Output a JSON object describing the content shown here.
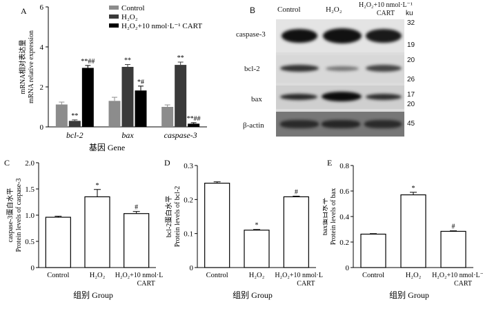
{
  "panel_letters": {
    "a": "A",
    "b": "B",
    "c": "C",
    "d": "D",
    "e": "E"
  },
  "blot": {
    "lanes": [
      "Control",
      "H₂O₂",
      "H₂O₂+10 nmol·L⁻¹ CART"
    ],
    "lane3_line1": "H₂O₂+10 nmol·L⁻¹",
    "lane3_line2": "CART",
    "ku_label": "ku",
    "rows": [
      {
        "label": "caspase-3",
        "ku": [
          "32",
          "19"
        ]
      },
      {
        "label": "bcl-2",
        "ku": [
          "20",
          "26"
        ]
      },
      {
        "label": "bax",
        "ku": [
          "17",
          "20"
        ]
      },
      {
        "label": "β-actin",
        "ku": [
          "45"
        ]
      }
    ]
  },
  "chart_data": [
    {
      "type": "bar",
      "panel": "A",
      "categories": [
        "bcl-2",
        "bax",
        "caspase-3"
      ],
      "series": [
        {
          "name": "Control",
          "values": [
            1.12,
            1.3,
            1.0
          ],
          "errors": [
            0.12,
            0.18,
            0.1
          ],
          "color": "#8c8c8c",
          "marks": [
            "",
            "",
            ""
          ]
        },
        {
          "name": "H₂O₂",
          "values": [
            0.3,
            3.0,
            3.1
          ],
          "errors": [
            0.05,
            0.12,
            0.14
          ],
          "color": "#3a3a3a",
          "marks": [
            "**",
            "**",
            "**"
          ]
        },
        {
          "name": "H₂O₂+10 nmol·L⁻¹ CART",
          "values": [
            2.95,
            1.82,
            0.16
          ],
          "errors": [
            0.12,
            0.22,
            0.05
          ],
          "color": "#000000",
          "marks": [
            "**##",
            "*#",
            "**##"
          ]
        }
      ],
      "ylim": [
        0,
        6
      ],
      "yticks": [
        0,
        2,
        4,
        6
      ],
      "ylabel_cn": "mRNA相对表达量",
      "ylabel_en": "mRNA relative expression",
      "xlabel": "基因  Gene"
    },
    {
      "type": "bar",
      "panel": "C",
      "categories": [
        "Control",
        "H₂O₂",
        "H₂O₂+10 nmol·L⁻¹ CART"
      ],
      "values": [
        0.96,
        1.35,
        1.03
      ],
      "errors": [
        0.02,
        0.14,
        0.04
      ],
      "marks": [
        "",
        "*",
        "#"
      ],
      "ylim": [
        0,
        2.0
      ],
      "yticks": [
        "0",
        "0.5",
        "1.0",
        "1.5",
        "2.0"
      ],
      "ylabel_cn": "caspase-3蛋白水平",
      "ylabel_en": "Protein levels of caspase-3",
      "xlabel": "组别  Group"
    },
    {
      "type": "bar",
      "panel": "D",
      "categories": [
        "Control",
        "H₂O₂",
        "H₂O₂+10 nmol·L⁻¹ CART"
      ],
      "values": [
        0.248,
        0.11,
        0.208
      ],
      "errors": [
        0.004,
        0.002,
        0.002
      ],
      "marks": [
        "",
        "*",
        "#"
      ],
      "ylim": [
        0,
        0.3
      ],
      "yticks": [
        "0",
        "0.1",
        "0.2",
        "0.3"
      ],
      "ylabel_cn": "bcl-2蛋白水平",
      "ylabel_en": "Protein levels of bcl-2",
      "xlabel": "组别  Group"
    },
    {
      "type": "bar",
      "panel": "E",
      "categories": [
        "Control",
        "H₂O₂",
        "H₂O₂+10 nmol·L⁻¹ CART"
      ],
      "values": [
        0.262,
        0.57,
        0.284
      ],
      "errors": [
        0.004,
        0.02,
        0.004
      ],
      "marks": [
        "",
        "*",
        "#"
      ],
      "ylim": [
        0,
        0.8
      ],
      "yticks": [
        "0",
        "0.2",
        "0.4",
        "0.6",
        "0.8"
      ],
      "ylabel_cn": "bax蛋白水平",
      "ylabel_en": "Protein levels of bax",
      "xlabel": "组别  Group"
    }
  ]
}
